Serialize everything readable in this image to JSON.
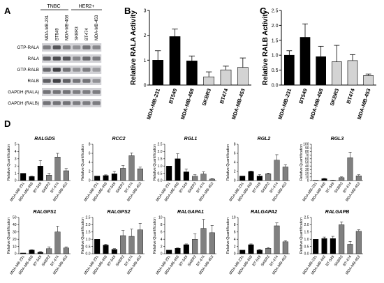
{
  "panels": {
    "A": "A",
    "B": "B",
    "C": "C",
    "D": "D"
  },
  "blot": {
    "group_headers": [
      "TNBC",
      "HER2+"
    ],
    "lanes": [
      "MDA-MB-231",
      "BT549",
      "MDA-MB-468",
      "SKBR3",
      "BT474",
      "MDA-MB-453"
    ],
    "rows": [
      "GTP-RALA",
      "RALA",
      "GTP-RALB",
      "RALB",
      "GAPDH (RALA)",
      "GAPDH (RALB)"
    ],
    "intensity": [
      [
        0.55,
        0.75,
        0.55,
        0.45,
        0.6,
        0.5
      ],
      [
        0.7,
        0.8,
        0.75,
        0.5,
        0.65,
        0.55
      ],
      [
        0.65,
        0.85,
        0.6,
        0.45,
        0.55,
        0.4
      ],
      [
        0.7,
        0.85,
        0.7,
        0.6,
        0.6,
        0.45
      ],
      [
        0.6,
        0.6,
        0.6,
        0.55,
        0.55,
        0.55
      ],
      [
        0.6,
        0.6,
        0.6,
        0.55,
        0.55,
        0.55
      ]
    ]
  },
  "chart_data": [
    {
      "id": "B",
      "type": "bar",
      "categories": [
        "MDA-MB-231",
        "BT549",
        "MDA-MB-468",
        "SKBR3",
        "BT474",
        "MDA-MB-453"
      ],
      "values": [
        1.0,
        1.95,
        0.97,
        0.33,
        0.61,
        0.71
      ],
      "errors": [
        0.38,
        0.3,
        0.2,
        0.2,
        0.15,
        0.38
      ],
      "bar_colors": [
        "#000000",
        "#000000",
        "#000000",
        "#d3d3d3",
        "#d3d3d3",
        "#d3d3d3"
      ],
      "title": "",
      "xlabel": "",
      "ylabel": "Relative RALA Activity",
      "ylim": [
        0,
        3
      ],
      "yticks": [
        "0",
        "1",
        "2",
        "3"
      ]
    },
    {
      "id": "C",
      "type": "bar",
      "categories": [
        "MDA-MB-231",
        "BT549",
        "MDA-MB-468",
        "SKBR3",
        "BT474",
        "MDA-MB-453"
      ],
      "values": [
        1.0,
        1.6,
        0.95,
        0.78,
        0.82,
        0.32
      ],
      "errors": [
        0.15,
        0.45,
        0.35,
        0.55,
        0.2,
        0.05
      ],
      "bar_colors": [
        "#000000",
        "#000000",
        "#000000",
        "#d3d3d3",
        "#d3d3d3",
        "#d3d3d3"
      ],
      "title": "",
      "xlabel": "",
      "ylabel": "Relative RALB Activity",
      "ylim": [
        0,
        2.5
      ],
      "yticks": [
        "0.0",
        "0.5",
        "1.0",
        "1.5",
        "2.0",
        "2.5"
      ]
    },
    {
      "id": "RALGDS",
      "type": "bar",
      "title": "RALGDS",
      "categories": [
        "MDA-MB-231",
        "MDA-MB-468",
        "BT-549",
        "SKBR3",
        "BT-474",
        "MDA-MB-453"
      ],
      "values": [
        1.0,
        0.55,
        2.0,
        0.75,
        3.25,
        1.35
      ],
      "errors": [
        0,
        0.05,
        0.75,
        0.25,
        0.5,
        0.3
      ],
      "bar_colors": [
        "#000000",
        "#000000",
        "#000000",
        "#808080",
        "#808080",
        "#808080"
      ],
      "ylabel": "Relative Quantification",
      "ylim": [
        0,
        5
      ],
      "yticks": [
        "0",
        "1",
        "2",
        "3",
        "4",
        "5"
      ]
    },
    {
      "id": "RCC2",
      "type": "bar",
      "title": "RCC2",
      "categories": [
        "MDA-MB-231",
        "MDA-MB-468",
        "BT-549",
        "SKBR3",
        "BT-474",
        "MDA-MB-453"
      ],
      "values": [
        1.0,
        1.1,
        1.5,
        2.7,
        5.5,
        2.6
      ],
      "errors": [
        0,
        0.15,
        0.5,
        0.6,
        0.6,
        0.35
      ],
      "bar_colors": [
        "#000000",
        "#000000",
        "#000000",
        "#808080",
        "#808080",
        "#808080"
      ],
      "ylabel": "Relative Quantification",
      "ylim": [
        0,
        8
      ],
      "yticks": [
        "0",
        "2",
        "4",
        "6",
        "8"
      ]
    },
    {
      "id": "RGL1",
      "type": "bar",
      "title": "RGL1",
      "categories": [
        "MDA-MB-231",
        "MDA-MB-468",
        "BT-549",
        "SKBR3",
        "BT-474",
        "MDA-MB-453"
      ],
      "values": [
        1.0,
        1.5,
        0.6,
        0.3,
        0.45,
        0.1
      ],
      "errors": [
        0,
        0.35,
        0.2,
        0.1,
        0.15,
        0.03
      ],
      "bar_colors": [
        "#000000",
        "#000000",
        "#000000",
        "#808080",
        "#808080",
        "#808080"
      ],
      "ylabel": "Relative Quantification",
      "ylim": [
        0,
        2.5
      ],
      "yticks": [
        "0.0",
        "0.5",
        "1.0",
        "1.5",
        "2.0",
        "2.5"
      ]
    },
    {
      "id": "RGL2",
      "type": "bar",
      "title": "RGL2",
      "categories": [
        "MDA-MB-231",
        "MDA-MB-468",
        "BT-549",
        "SKBR3",
        "BT-474",
        "MDA-MB-453"
      ],
      "values": [
        1.0,
        2.0,
        1.0,
        1.5,
        4.5,
        3.0
      ],
      "errors": [
        0,
        0.1,
        0.3,
        0.15,
        1.2,
        0.5
      ],
      "bar_colors": [
        "#000000",
        "#000000",
        "#000000",
        "#808080",
        "#808080",
        "#808080"
      ],
      "ylabel": "Relative Quantification",
      "ylim": [
        0,
        8
      ],
      "yticks": [
        "0",
        "2",
        "4",
        "6",
        "8"
      ]
    },
    {
      "id": "RGL3",
      "type": "bar",
      "title": "RGL3",
      "categories": [
        "MDA-MB-231",
        "MDA-MB-468",
        "BT-549",
        "SKBR3",
        "BT-474",
        "MDA-MB-453"
      ],
      "values": [
        1.0,
        5.0,
        0.8,
        8.0,
        63.0,
        13.0
      ],
      "errors": [
        0,
        1.0,
        0.3,
        2.0,
        15.0,
        3.0
      ],
      "bar_colors": [
        "#000000",
        "#000000",
        "#000000",
        "#808080",
        "#808080",
        "#808080"
      ],
      "ylabel": "Relative Quantification",
      "ylim": [
        0,
        100
      ],
      "yticks": [
        "0",
        "10",
        "20",
        "30",
        "40",
        "50",
        "60",
        "70",
        "80",
        "90",
        "100"
      ]
    },
    {
      "id": "RALGPS1",
      "type": "bar",
      "title": "RALGPS1",
      "categories": [
        "MDA-MB-231",
        "MDA-MB-468",
        "BT-549",
        "SKBR3",
        "BT-474",
        "MDA-MB-453"
      ],
      "values": [
        1.0,
        5.0,
        2.0,
        7.0,
        30.0,
        8.0
      ],
      "errors": [
        0,
        0.5,
        1.0,
        2.5,
        8.0,
        1.5
      ],
      "bar_colors": [
        "#000000",
        "#000000",
        "#000000",
        "#808080",
        "#808080",
        "#808080"
      ],
      "ylabel": "Relative Quantification",
      "ylim": [
        0,
        50
      ],
      "yticks": [
        "0",
        "10",
        "20",
        "30",
        "40",
        "50"
      ]
    },
    {
      "id": "RALGPS2",
      "type": "bar",
      "title": "RALGPS2",
      "categories": [
        "MDA-MB-231",
        "MDA-MB-468",
        "BT-549",
        "SKBR3",
        "BT-474",
        "MDA-MB-453"
      ],
      "values": [
        1.0,
        0.6,
        0.3,
        1.25,
        1.2,
        1.65
      ],
      "errors": [
        0,
        0.05,
        0.05,
        0.35,
        0.5,
        0.45
      ],
      "bar_colors": [
        "#000000",
        "#000000",
        "#000000",
        "#808080",
        "#808080",
        "#808080"
      ],
      "ylabel": "Relative Quantification",
      "ylim": [
        0,
        2.5
      ],
      "yticks": [
        "0.0",
        "0.5",
        "1.0",
        "1.5",
        "2.0",
        "2.5"
      ]
    },
    {
      "id": "RALGAPA1",
      "type": "bar",
      "title": "RALGAPA1",
      "categories": [
        "MDA-MB-231",
        "MDA-MB-468",
        "BT-549",
        "SKBR3",
        "BT-474",
        "MDA-MB-453"
      ],
      "values": [
        1.0,
        1.5,
        2.5,
        4.0,
        7.0,
        5.8
      ],
      "errors": [
        0,
        0.1,
        0.2,
        1.5,
        2.5,
        2.0
      ],
      "bar_colors": [
        "#000000",
        "#000000",
        "#000000",
        "#808080",
        "#808080",
        "#808080"
      ],
      "ylabel": "Relative Quantification",
      "ylim": [
        0,
        10
      ],
      "yticks": [
        "0",
        "2",
        "4",
        "6",
        "8",
        "10"
      ]
    },
    {
      "id": "RALGAPA2",
      "type": "bar",
      "title": "RALGAPA2",
      "categories": [
        "MDA-MB-231",
        "MDA-MB-468",
        "BT-549",
        "SKBR3",
        "BT-474",
        "MDA-MB-453"
      ],
      "values": [
        1.0,
        2.5,
        1.0,
        1.5,
        7.7,
        3.3
      ],
      "errors": [
        0,
        0.2,
        0.2,
        0.2,
        0.8,
        0.3
      ],
      "bar_colors": [
        "#000000",
        "#000000",
        "#000000",
        "#808080",
        "#808080",
        "#808080"
      ],
      "ylabel": "Relative Quantification",
      "ylim": [
        0,
        10
      ],
      "yticks": [
        "0",
        "2",
        "4",
        "6",
        "8",
        "10"
      ]
    },
    {
      "id": "RALGAPB",
      "type": "bar",
      "title": "RALGAPB",
      "categories": [
        "MDA-MB-231",
        "MDA-MB-468",
        "BT-549",
        "SKBR3",
        "BT-474",
        "MDA-MB-453"
      ],
      "values": [
        1.0,
        1.05,
        1.05,
        2.0,
        0.65,
        1.55
      ],
      "errors": [
        0,
        0.1,
        0.15,
        0.2,
        0.2,
        0.1
      ],
      "bar_colors": [
        "#000000",
        "#000000",
        "#000000",
        "#808080",
        "#808080",
        "#808080"
      ],
      "ylabel": "Relative Quantification",
      "ylim": [
        0,
        2.5
      ],
      "yticks": [
        "0.0",
        "0.5",
        "1.0",
        "1.5",
        "2.0",
        "2.5"
      ]
    }
  ]
}
